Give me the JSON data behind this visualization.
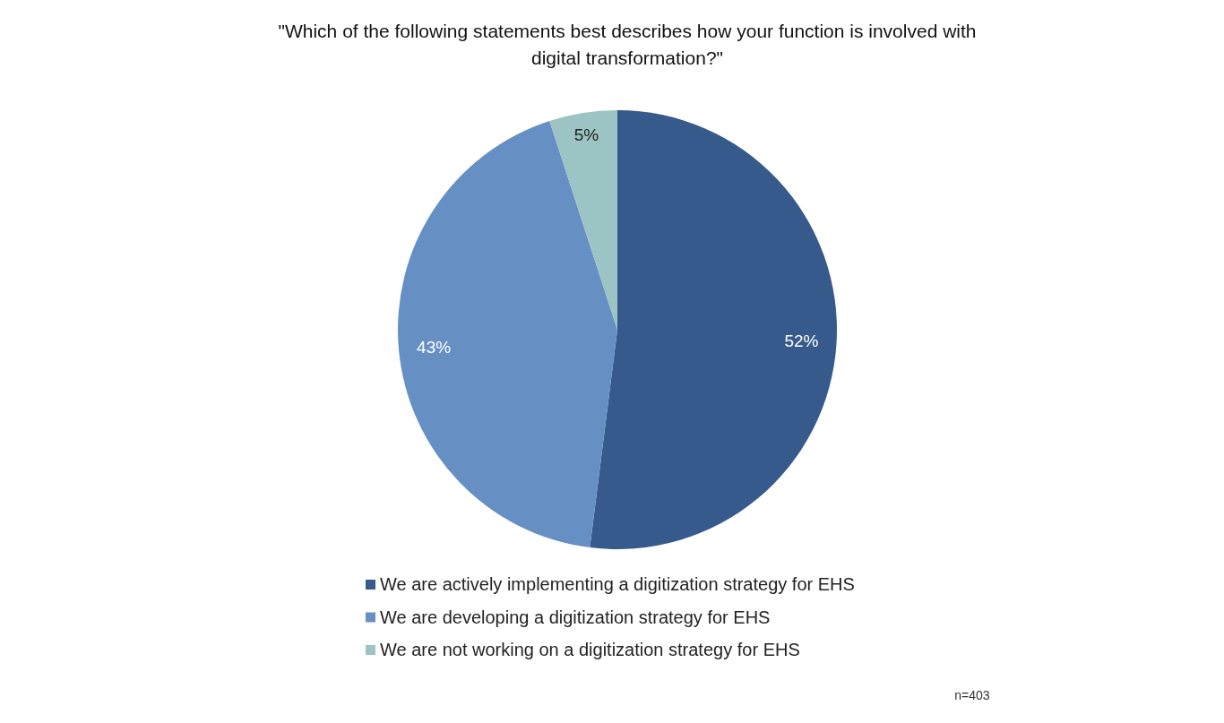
{
  "chart_data": {
    "type": "pie",
    "title": "\"Which of the following statements best describes how your function is involved with\ndigital transformation?\"",
    "categories": [
      "We are actively implementing a digitization strategy for EHS",
      "We are developing a digitization strategy for EHS",
      "We are not working on a digitization strategy for EHS"
    ],
    "values": [
      52,
      43,
      5
    ],
    "colors": [
      "#365a8c",
      "#6690c4",
      "#9cc4c4"
    ],
    "value_labels": [
      "52%",
      "43%",
      "5%"
    ],
    "legend": "bottom",
    "annotations": [
      "n=403"
    ]
  }
}
